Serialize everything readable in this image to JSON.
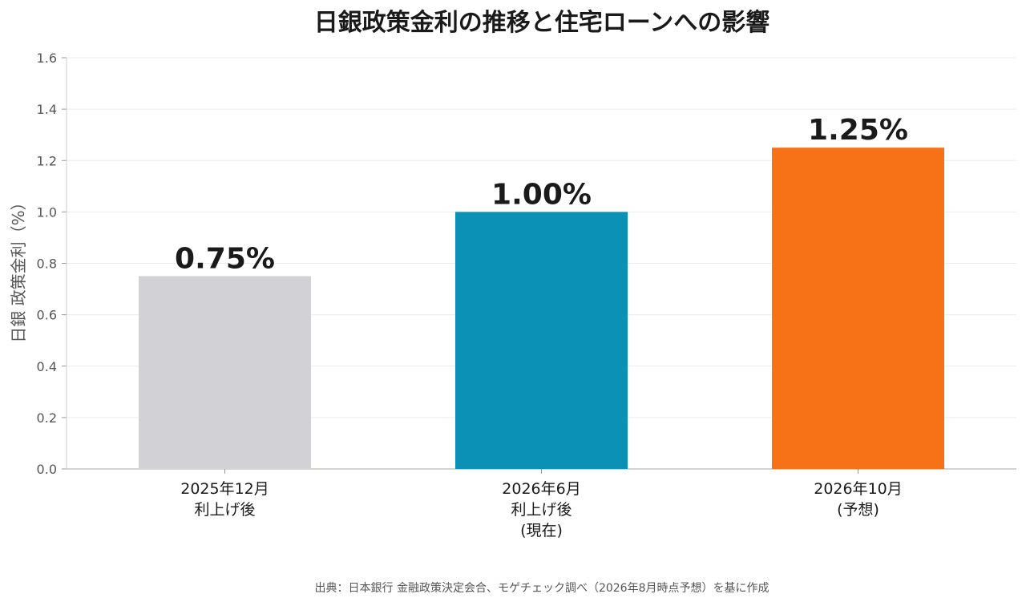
{
  "chart_data": {
    "type": "bar",
    "title": "日銀政策金利の推移と住宅ローンへの影響",
    "ylabel": "日銀 政策金利（%）",
    "xlabel": "",
    "ylim": [
      0,
      1.6
    ],
    "yticks": [
      "0.0",
      "0.2",
      "0.4",
      "0.6",
      "0.8",
      "1.0",
      "1.2",
      "1.4",
      "1.6"
    ],
    "grid": true,
    "categories": [
      [
        "2025年12月",
        "利上げ後"
      ],
      [
        "2026年6月",
        "利上げ後",
        "(現在)"
      ],
      [
        "2026年10月",
        "(予想)"
      ]
    ],
    "values": [
      0.75,
      1.0,
      1.25
    ],
    "value_labels": [
      "0.75%",
      "1.00%",
      "1.25%"
    ],
    "colors": [
      "#d1d1d6",
      "#0b91b5",
      "#f77217"
    ],
    "source": "出典：日本銀行 金融政策決定会合、モゲチェック調べ（2026年8月時点予想）を基に作成"
  }
}
